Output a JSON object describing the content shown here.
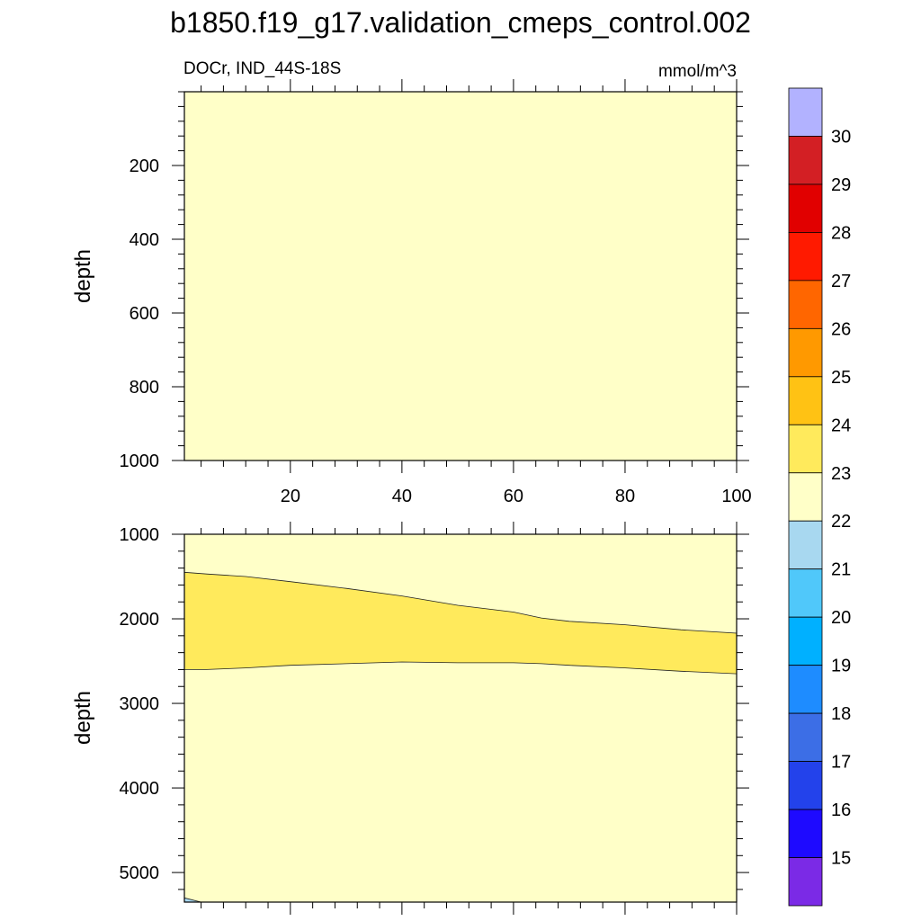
{
  "title": "b1850.f19_g17.validation_cmeps_control.002",
  "chart_data": [
    {
      "type": "contour",
      "panel": "upper",
      "left_label": "DOCr, IND_44S-18S",
      "right_label": "mmol/m^3",
      "xlabel": "",
      "ylabel": "depth",
      "xlim": [
        1,
        100
      ],
      "ylim": [
        0,
        1000
      ],
      "y_inverted": true,
      "x_ticks": [
        20,
        40,
        60,
        80,
        100
      ],
      "y_ticks": [
        200,
        400,
        600,
        800,
        1000
      ],
      "fill_level": "22-23",
      "regions": []
    },
    {
      "type": "contour",
      "panel": "lower",
      "xlabel": "",
      "ylabel": "depth",
      "xlim": [
        1,
        100
      ],
      "ylim": [
        1000,
        5350
      ],
      "y_inverted": true,
      "x_ticks": [
        20,
        40,
        60,
        80,
        100
      ],
      "y_ticks": [
        1000,
        2000,
        3000,
        4000,
        5000
      ],
      "fill_level": "22-23",
      "regions": [
        {
          "level": "23-24",
          "x": [
            1,
            5,
            12,
            20,
            30,
            40,
            50,
            60,
            65,
            70,
            80,
            90,
            100
          ],
          "top": [
            1450,
            1470,
            1500,
            1560,
            1640,
            1730,
            1840,
            1920,
            1990,
            2030,
            2070,
            2130,
            2170
          ],
          "bottom": [
            2600,
            2600,
            2580,
            2550,
            2530,
            2510,
            2520,
            2520,
            2530,
            2550,
            2580,
            2620,
            2650
          ]
        },
        {
          "level": "21-22",
          "x": [
            1,
            4,
            1
          ],
          "depth": [
            5300,
            5350,
            5350
          ]
        }
      ]
    }
  ],
  "colorbar": {
    "labels": [
      "15",
      "16",
      "17",
      "18",
      "19",
      "20",
      "21",
      "22",
      "23",
      "24",
      "25",
      "26",
      "27",
      "28",
      "29",
      "30"
    ],
    "colors": [
      "#b2b2ff",
      "#d31f24",
      "#e10000",
      "#ff1a00",
      "#ff6600",
      "#ff9900",
      "#ffc214",
      "#ffea5c",
      "#ffffc8",
      "#a8d8f0",
      "#50c8fa",
      "#00b0ff",
      "#1e8cff",
      "#3c6ee6",
      "#2342eb",
      "#1e0aff",
      "#7b2ae6"
    ],
    "level_colors": {
      "21-22": "#a8d8f0",
      "22-23": "#ffffc8",
      "23-24": "#ffea5c"
    }
  }
}
